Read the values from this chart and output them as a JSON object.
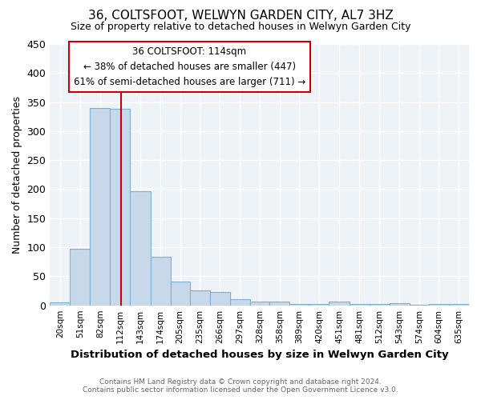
{
  "title": "36, COLTSFOOT, WELWYN GARDEN CITY, AL7 3HZ",
  "subtitle": "Size of property relative to detached houses in Welwyn Garden City",
  "xlabel": "Distribution of detached houses by size in Welwyn Garden City",
  "ylabel": "Number of detached properties",
  "footer_line1": "Contains HM Land Registry data © Crown copyright and database right 2024.",
  "footer_line2": "Contains public sector information licensed under the Open Government Licence v3.0.",
  "categories": [
    "20sqm",
    "51sqm",
    "82sqm",
    "112sqm",
    "143sqm",
    "174sqm",
    "205sqm",
    "235sqm",
    "266sqm",
    "297sqm",
    "328sqm",
    "358sqm",
    "389sqm",
    "420sqm",
    "451sqm",
    "481sqm",
    "512sqm",
    "543sqm",
    "574sqm",
    "604sqm",
    "635sqm"
  ],
  "values": [
    5,
    98,
    340,
    338,
    196,
    84,
    41,
    26,
    23,
    11,
    7,
    6,
    3,
    3,
    6,
    2,
    3,
    4,
    1,
    3,
    3
  ],
  "bar_color": "#c8d8eb",
  "bar_edgecolor": "#7fb0d0",
  "plot_bg_color": "#eef3f8",
  "ylim": [
    0,
    450
  ],
  "yticks": [
    0,
    50,
    100,
    150,
    200,
    250,
    300,
    350,
    400,
    450
  ],
  "property_line_x": 114,
  "property_line_color": "#cc0000",
  "annotation_line1": "36 COLTSFOOT: 114sqm",
  "annotation_line2": "← 38% of detached houses are smaller (447)",
  "annotation_line3": "61% of semi-detached houses are larger (711) →",
  "annotation_box_color": "#ffffff",
  "annotation_box_edgecolor": "#cc0000",
  "bin_edges": [
    4.5,
    35.5,
    66.5,
    97.5,
    128.5,
    159.5,
    190.5,
    220.5,
    251.5,
    282.5,
    313.5,
    343.5,
    374.5,
    404.5,
    435.5,
    466.5,
    497.5,
    528.5,
    559.5,
    589.5,
    620.5,
    651.5
  ]
}
